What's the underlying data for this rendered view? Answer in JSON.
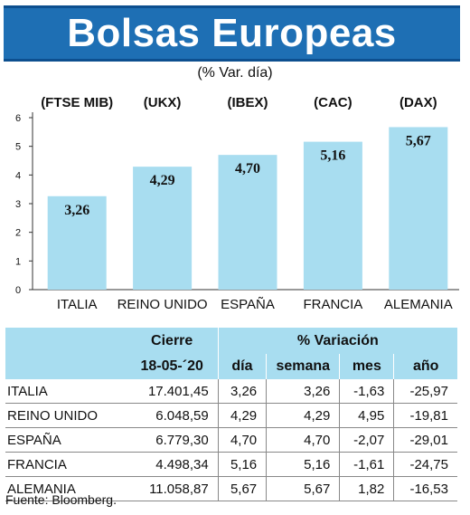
{
  "title": "Bolsas Europeas",
  "subtitle": "(% Var. día)",
  "chart_data": {
    "type": "bar",
    "categories": [
      "ITALIA",
      "REINO UNIDO",
      "ESPAÑA",
      "FRANCIA",
      "ALEMANIA"
    ],
    "indices": [
      "(FTSE MIB)",
      "(UKX)",
      "(IBEX)",
      "(CAC)",
      "(DAX)"
    ],
    "values": [
      3.26,
      4.29,
      4.7,
      5.16,
      5.67
    ],
    "value_labels": [
      "3,26",
      "4,29",
      "4,70",
      "5,16",
      "5,67"
    ],
    "yticks": [
      "0",
      "1",
      "2",
      "3",
      "4",
      "5",
      "6"
    ],
    "ylim": [
      0,
      6
    ],
    "bar_color": "#a8ddf0",
    "grid": false
  },
  "table": {
    "header_cierre": "Cierre",
    "header_variacion": "% Variación",
    "date": "18-05-´20",
    "columns": [
      "día",
      "semana",
      "mes",
      "año"
    ],
    "rows": [
      {
        "name": "ITALIA",
        "cierre": "17.401,45",
        "dia": "3,26",
        "semana": "3,26",
        "mes": "-1,63",
        "ano": "-25,97"
      },
      {
        "name": "REINO UNIDO",
        "cierre": "6.048,59",
        "dia": "4,29",
        "semana": "4,29",
        "mes": "4,95",
        "ano": "-19,81"
      },
      {
        "name": "ESPAÑA",
        "cierre": "6.779,30",
        "dia": "4,70",
        "semana": "4,70",
        "mes": "-2,07",
        "ano": "-29,01"
      },
      {
        "name": "FRANCIA",
        "cierre": "4.498,34",
        "dia": "5,16",
        "semana": "5,16",
        "mes": "-1,61",
        "ano": "-24,75"
      },
      {
        "name": "ALEMANIA",
        "cierre": "11.058,87",
        "dia": "5,67",
        "semana": "5,67",
        "mes": "1,82",
        "ano": "-16,53"
      }
    ]
  },
  "source": "Fuente: Bloomberg.",
  "colors": {
    "banner": "#1e6fb4",
    "header_bg": "#a8ddf0"
  }
}
